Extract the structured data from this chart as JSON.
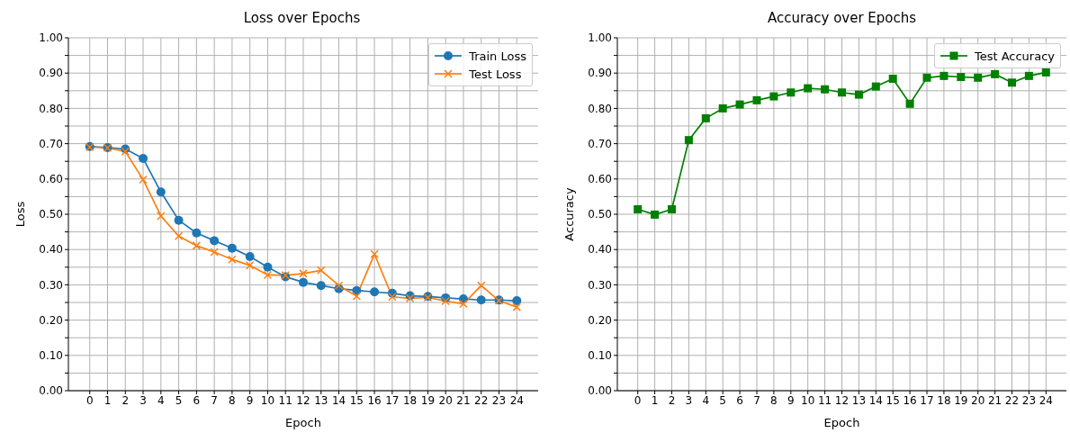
{
  "chart_data": [
    {
      "type": "line",
      "title": "Loss over Epochs",
      "xlabel": "Epoch",
      "ylabel": "Loss",
      "x": [
        0,
        1,
        2,
        3,
        4,
        5,
        6,
        7,
        8,
        9,
        10,
        11,
        12,
        13,
        14,
        15,
        16,
        17,
        18,
        19,
        20,
        21,
        22,
        23,
        24
      ],
      "xlim": [
        -1.2,
        25.2
      ],
      "xticks": [
        0,
        1,
        2,
        3,
        4,
        5,
        6,
        7,
        8,
        9,
        10,
        11,
        12,
        13,
        14,
        15,
        16,
        17,
        18,
        19,
        20,
        21,
        22,
        23,
        24
      ],
      "ylim": [
        0,
        1
      ],
      "yticks": [
        {
          "value": 0,
          "label": "0.00"
        },
        {
          "value": 0.05,
          "label": null
        },
        {
          "value": 0.1,
          "label": "0.10"
        },
        {
          "value": 0.15,
          "label": null
        },
        {
          "value": 0.2,
          "label": "0.20"
        },
        {
          "value": 0.25,
          "label": null
        },
        {
          "value": 0.3,
          "label": "0.30"
        },
        {
          "value": 0.35,
          "label": null
        },
        {
          "value": 0.4,
          "label": "0.40"
        },
        {
          "value": 0.45,
          "label": null
        },
        {
          "value": 0.5,
          "label": "0.50"
        },
        {
          "value": 0.55,
          "label": null
        },
        {
          "value": 0.6,
          "label": "0.60"
        },
        {
          "value": 0.65,
          "label": null
        },
        {
          "value": 0.7,
          "label": "0.70"
        },
        {
          "value": 0.75,
          "label": null
        },
        {
          "value": 0.8,
          "label": "0.80"
        },
        {
          "value": 0.85,
          "label": null
        },
        {
          "value": 0.9,
          "label": "0.90"
        },
        {
          "value": 0.95,
          "label": null
        },
        {
          "value": 1,
          "label": "1.00"
        }
      ],
      "grid": true,
      "legend": "top right",
      "line_style": "solid",
      "series": [
        {
          "name": "Train Loss",
          "color": "#1f77b4",
          "marker": "circle",
          "values": [
            0.692,
            0.689,
            0.685,
            0.658,
            0.563,
            0.483,
            0.447,
            0.425,
            0.404,
            0.38,
            0.35,
            0.323,
            0.307,
            0.298,
            0.289,
            0.284,
            0.28,
            0.276,
            0.269,
            0.267,
            0.263,
            0.26,
            0.257,
            0.257,
            0.255
          ]
        },
        {
          "name": "Test Loss",
          "color": "#ff7f0e",
          "marker": "cross",
          "values": [
            0.69,
            0.688,
            0.678,
            0.598,
            0.495,
            0.438,
            0.411,
            0.393,
            0.372,
            0.355,
            0.328,
            0.327,
            0.332,
            0.341,
            0.298,
            0.268,
            0.387,
            0.266,
            0.262,
            0.264,
            0.254,
            0.246,
            0.298,
            0.255,
            0.237
          ]
        }
      ]
    },
    {
      "type": "line",
      "title": "Accuracy over Epochs",
      "xlabel": "Epoch",
      "ylabel": "Accuracy",
      "x": [
        0,
        1,
        2,
        3,
        4,
        5,
        6,
        7,
        8,
        9,
        10,
        11,
        12,
        13,
        14,
        15,
        16,
        17,
        18,
        19,
        20,
        21,
        22,
        23,
        24
      ],
      "xlim": [
        -1.2,
        25.2
      ],
      "xticks": [
        0,
        1,
        2,
        3,
        4,
        5,
        6,
        7,
        8,
        9,
        10,
        11,
        12,
        13,
        14,
        15,
        16,
        17,
        18,
        19,
        20,
        21,
        22,
        23,
        24
      ],
      "ylim": [
        0,
        1
      ],
      "yticks": [
        {
          "value": 0,
          "label": "0.00"
        },
        {
          "value": 0.05,
          "label": null
        },
        {
          "value": 0.1,
          "label": "0.10"
        },
        {
          "value": 0.15,
          "label": null
        },
        {
          "value": 0.2,
          "label": "0.20"
        },
        {
          "value": 0.25,
          "label": null
        },
        {
          "value": 0.3,
          "label": "0.30"
        },
        {
          "value": 0.35,
          "label": null
        },
        {
          "value": 0.4,
          "label": "0.40"
        },
        {
          "value": 0.45,
          "label": null
        },
        {
          "value": 0.5,
          "label": "0.50"
        },
        {
          "value": 0.55,
          "label": null
        },
        {
          "value": 0.6,
          "label": "0.60"
        },
        {
          "value": 0.65,
          "label": null
        },
        {
          "value": 0.7,
          "label": "0.70"
        },
        {
          "value": 0.75,
          "label": null
        },
        {
          "value": 0.8,
          "label": "0.80"
        },
        {
          "value": 0.85,
          "label": null
        },
        {
          "value": 0.9,
          "label": "0.90"
        },
        {
          "value": 0.95,
          "label": null
        },
        {
          "value": 1,
          "label": "1.00"
        }
      ],
      "grid": true,
      "legend": "top right",
      "line_style": "solid",
      "series": [
        {
          "name": "Test Accuracy",
          "color": "#008000",
          "marker": "square",
          "values": [
            0.514,
            0.499,
            0.514,
            0.71,
            0.772,
            0.8,
            0.811,
            0.823,
            0.834,
            0.845,
            0.857,
            0.854,
            0.845,
            0.839,
            0.862,
            0.884,
            0.813,
            0.887,
            0.892,
            0.889,
            0.887,
            0.897,
            0.873,
            0.892,
            0.902
          ]
        }
      ]
    }
  ]
}
